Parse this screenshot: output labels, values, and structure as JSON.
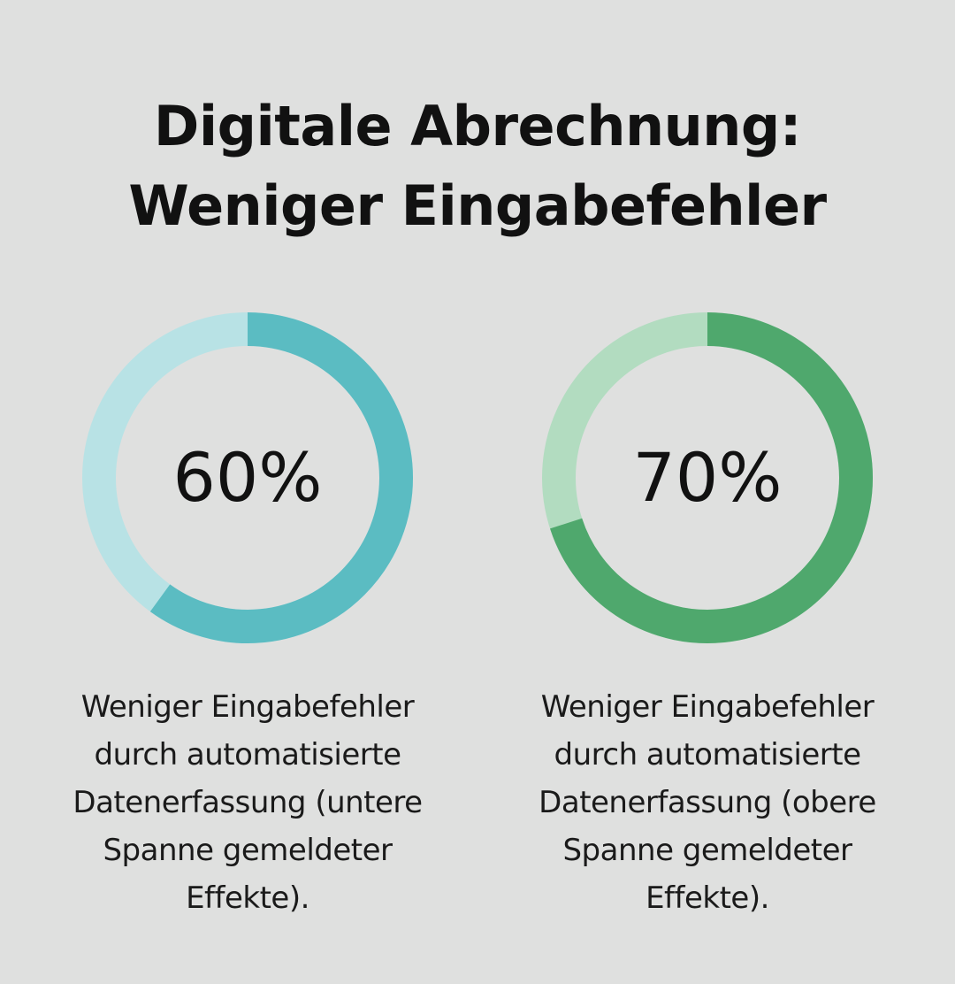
{
  "title_line1": "Digitale Abrechnung:",
  "title_line2": "Weniger Eingabefehler",
  "chart_data": [
    {
      "type": "pie",
      "value": 60,
      "value_label": "60%",
      "caption": "Weniger Eingabefehler durch automatisierte Datenerfassung (untere Spanne gemeldeter Effekte).",
      "colors": {
        "fill": "#5bbcc2",
        "track": "#b8e2e5"
      }
    },
    {
      "type": "pie",
      "value": 70,
      "value_label": "70%",
      "caption": "Weniger Eingabefehler durch automatisierte Datenerfassung (obere Spanne gemeldeter Effekte).",
      "colors": {
        "fill": "#4fa86d",
        "track": "#b2dcc0"
      }
    }
  ]
}
